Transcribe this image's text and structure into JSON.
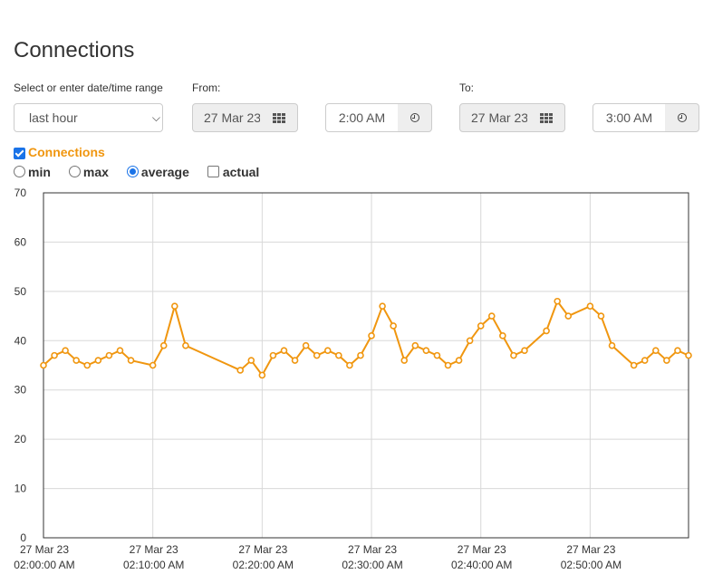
{
  "page": {
    "title": "Connections"
  },
  "range": {
    "label": "Select or enter date/time range",
    "selected": "last hour"
  },
  "from": {
    "label": "From:",
    "date": "27 Mar 23",
    "time": "2:00 AM"
  },
  "to": {
    "label": "To:",
    "date": "27 Mar 23",
    "time": "3:00 AM"
  },
  "series_toggle": {
    "label": "Connections",
    "checked": true
  },
  "options": {
    "min": "min",
    "max": "max",
    "average": "average",
    "actual": "actual",
    "selected": "average"
  },
  "colors": {
    "series": "#f0960f",
    "grid": "#d8d8d8",
    "radio": "#1a73e8"
  },
  "icons": {
    "date": "calendar-grid-icon",
    "time": "clock-icon",
    "select": "chevron-down-icon"
  },
  "chart_data": {
    "type": "line",
    "ylim": [
      0,
      70
    ],
    "yticks": [
      "0",
      "10",
      "20",
      "30",
      "40",
      "50",
      "60",
      "70"
    ],
    "xlim_minutes": [
      0,
      59
    ],
    "xticks": [
      {
        "minute": 0,
        "line1": "27 Mar 23",
        "line2": "02:00:00 AM"
      },
      {
        "minute": 10,
        "line1": "27 Mar 23",
        "line2": "02:10:00 AM"
      },
      {
        "minute": 20,
        "line1": "27 Mar 23",
        "line2": "02:20:00 AM"
      },
      {
        "minute": 30,
        "line1": "27 Mar 23",
        "line2": "02:30:00 AM"
      },
      {
        "minute": 40,
        "line1": "27 Mar 23",
        "line2": "02:40:00 AM"
      },
      {
        "minute": 50,
        "line1": "27 Mar 23",
        "line2": "02:50:00 AM"
      }
    ],
    "grid": true,
    "series": [
      {
        "x": [
          0,
          1,
          2,
          3,
          4,
          5,
          6,
          7,
          8,
          10,
          11,
          12,
          13,
          18,
          19,
          20,
          21,
          22,
          23,
          24,
          25,
          26,
          27,
          28,
          29,
          30,
          31,
          32,
          33,
          34,
          35,
          36,
          37,
          38,
          39,
          40,
          41,
          42,
          43,
          44,
          46,
          47,
          48,
          50,
          51,
          52,
          54,
          55,
          56,
          57,
          58,
          59
        ],
        "values": [
          35,
          37,
          38,
          36,
          35,
          36,
          37,
          38,
          36,
          35,
          39,
          47,
          39,
          34,
          36,
          33,
          37,
          38,
          36,
          39,
          37,
          38,
          37,
          35,
          37,
          41,
          47,
          43,
          36,
          39,
          38,
          37,
          35,
          36,
          40,
          43,
          45,
          41,
          37,
          38,
          42,
          48,
          45,
          47,
          45,
          39,
          35,
          36,
          38,
          36,
          38,
          37
        ]
      }
    ]
  }
}
